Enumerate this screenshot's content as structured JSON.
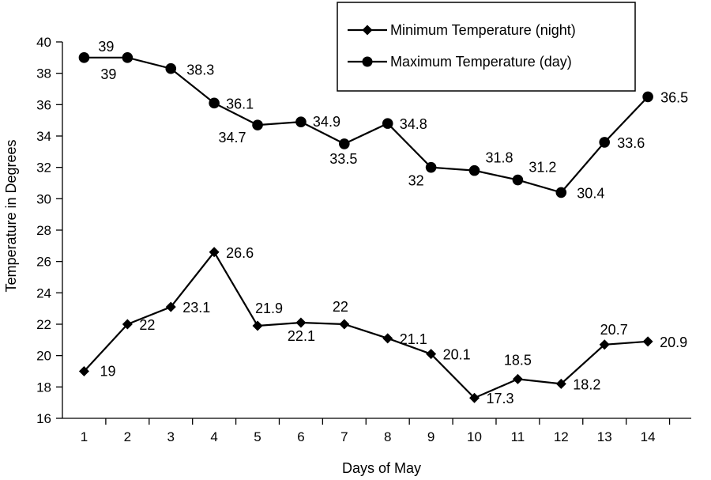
{
  "chart_data": {
    "type": "line",
    "xlabel": "Days of May",
    "ylabel": "Temperature in Degrees",
    "x": [
      1,
      2,
      3,
      4,
      5,
      6,
      7,
      8,
      9,
      10,
      11,
      12,
      13,
      14
    ],
    "xlim": [
      0.5,
      15
    ],
    "ylim": [
      16,
      40
    ],
    "yticks": [
      16,
      18,
      20,
      22,
      24,
      26,
      28,
      30,
      32,
      34,
      36,
      38,
      40
    ],
    "grid": false,
    "legend_position": "top-right",
    "series": [
      {
        "name": "Minimum Temperature (night)",
        "marker": "diamond",
        "color": "#000000",
        "values": [
          19,
          22,
          23.1,
          26.6,
          21.9,
          22.1,
          22,
          21.1,
          20.1,
          17.3,
          18.5,
          18.2,
          20.7,
          20.9
        ],
        "labels": [
          "19",
          "22",
          "23.1",
          "26.6",
          "21.9",
          "22.1",
          "22",
          "21.1",
          "20.1",
          "17.3",
          "18.5",
          "18.2",
          "20.7",
          "20.9"
        ]
      },
      {
        "name": "Maximum Temperature (day)",
        "marker": "circle",
        "color": "#000000",
        "values": [
          39,
          39,
          38.3,
          36.1,
          34.7,
          34.9,
          33.5,
          34.8,
          32,
          31.8,
          31.2,
          30.4,
          33.6,
          36.5
        ],
        "labels": [
          "39",
          "39",
          "38.3",
          "36.1",
          "34.7",
          "34.9",
          "33.5",
          "34.8",
          "32",
          "31.8",
          "31.2",
          "30.4",
          "33.6",
          "36.5"
        ]
      }
    ]
  }
}
